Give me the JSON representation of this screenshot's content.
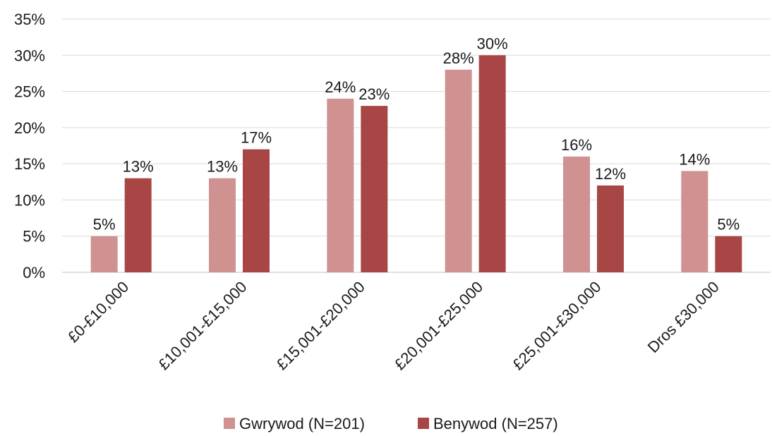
{
  "chart_data": {
    "type": "bar",
    "categories": [
      "£0-£10,000",
      "£10,001-£15,000",
      "£15,001-£20,000",
      "£20,001-£25,000",
      "£25,001-£30,000",
      "Dros £30,000"
    ],
    "series": [
      {
        "name": "Gwrywod (N=201)",
        "color": "#d09191",
        "values": [
          5,
          13,
          24,
          28,
          16,
          14
        ],
        "labels": [
          "5%",
          "13%",
          "24%",
          "28%",
          "16%",
          "14%"
        ]
      },
      {
        "name": "Benywod (N=257)",
        "color": "#a84646",
        "values": [
          13,
          17,
          23,
          30,
          12,
          5
        ],
        "labels": [
          "13%",
          "17%",
          "23%",
          "30%",
          "12%",
          "5%"
        ]
      }
    ],
    "ylim": [
      0,
      35
    ],
    "yticks": [
      0,
      5,
      10,
      15,
      20,
      25,
      30,
      35
    ],
    "ytick_labels": [
      "0%",
      "5%",
      "10%",
      "15%",
      "20%",
      "25%",
      "30%",
      "35%"
    ],
    "title": "",
    "xlabel": "",
    "ylabel": "",
    "grid": true,
    "legend_position": "bottom"
  }
}
